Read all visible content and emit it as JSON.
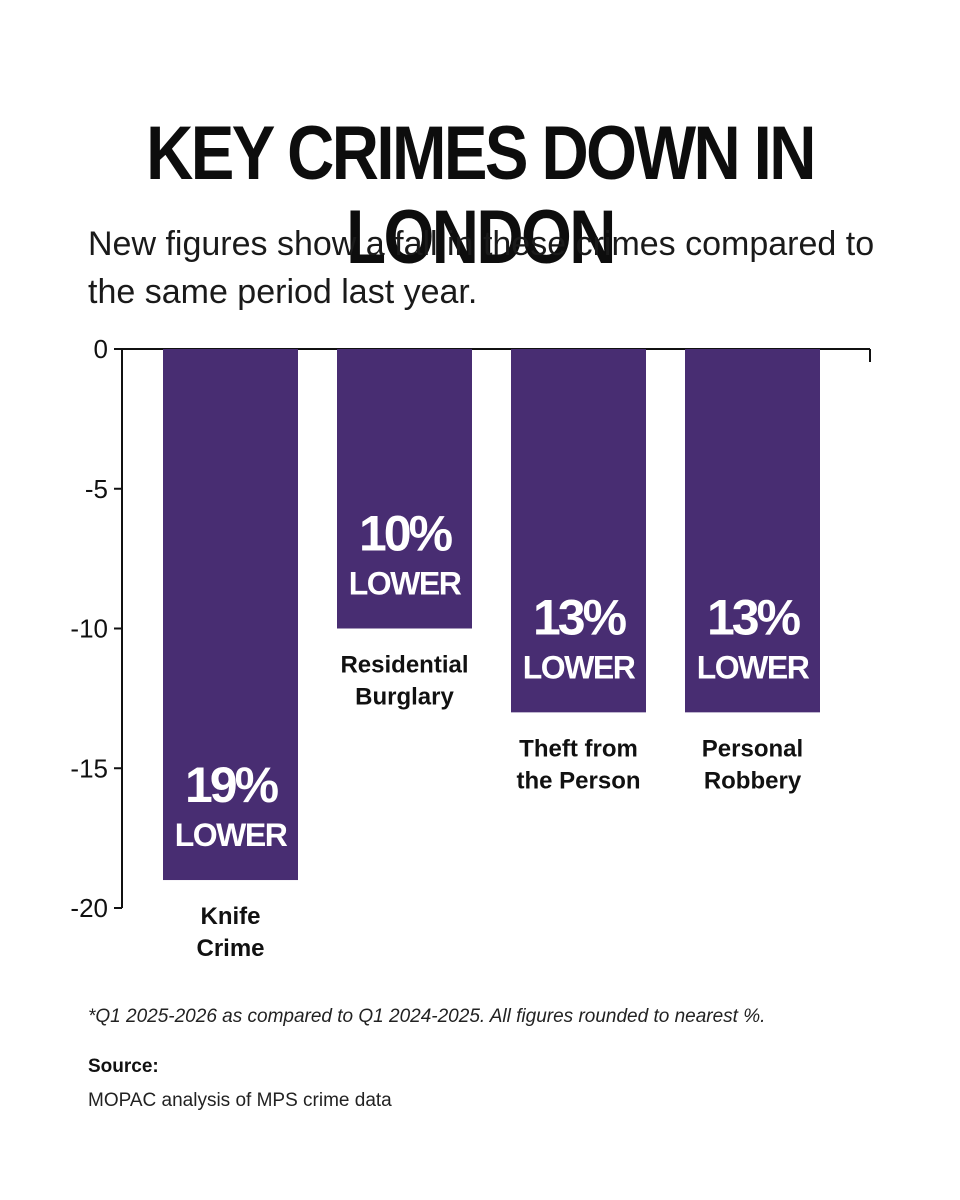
{
  "title": "KEY CRIMES DOWN IN LONDON",
  "subtitle": "New figures show a fall in these crimes compared to the same period last year.",
  "footnote": "*Q1 2025-2026 as compared to Q1 2024-2025. All figures rounded to nearest %.",
  "source": {
    "heading": "Source:",
    "text": "MOPAC analysis of MPS crime data"
  },
  "colors": {
    "bar": "#482d72",
    "bar_text": "#ffffff",
    "axis": "#111111"
  },
  "chart_data": {
    "type": "bar",
    "categories": [
      [
        "Knife",
        "Crime"
      ],
      [
        "Residential",
        "Burglary"
      ],
      [
        "Theft from",
        "the Person"
      ],
      [
        "Personal",
        "Robbery"
      ]
    ],
    "values": [
      -19,
      -10,
      -13,
      -13
    ],
    "bar_labels": [
      [
        "19%",
        "LOWER"
      ],
      [
        "10%",
        "LOWER"
      ],
      [
        "13%",
        "LOWER"
      ],
      [
        "13%",
        "LOWER"
      ]
    ],
    "ylim": [
      -20,
      0
    ],
    "yticks": [
      0,
      -5,
      -10,
      -15,
      -20
    ],
    "ytick_labels": [
      "0",
      "-5",
      "-10",
      "-15",
      "-20"
    ],
    "xlabel": "",
    "ylabel": "",
    "grid": false,
    "legend": "none"
  }
}
